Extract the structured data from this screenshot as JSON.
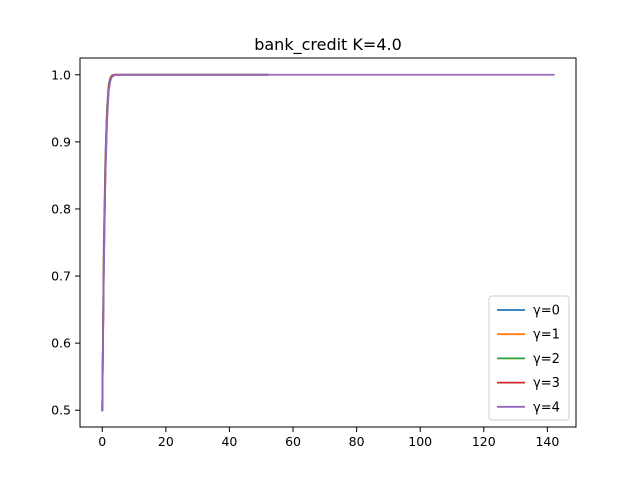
{
  "chart_data": {
    "type": "line",
    "title": "bank_credit K=4.0",
    "xlabel": "",
    "ylabel": "",
    "xlim": [
      -7,
      149
    ],
    "ylim": [
      0.475,
      1.025
    ],
    "x_ticks": [
      0,
      20,
      40,
      60,
      80,
      100,
      120,
      140
    ],
    "y_ticks": [
      0.5,
      0.6,
      0.7,
      0.8,
      0.9,
      1.0
    ],
    "y_tick_labels": [
      "0.5",
      "0.6",
      "0.7",
      "0.8",
      "0.9",
      "1.0"
    ],
    "grid": false,
    "legend_position": "lower-right",
    "series": [
      {
        "name": "γ=0",
        "color": "#1f77b4",
        "x": [
          0,
          0.5,
          1,
          1.5,
          2,
          2.5,
          3,
          4,
          6,
          10,
          20,
          30,
          40,
          52
        ],
        "y": [
          0.5,
          0.75,
          0.88,
          0.95,
          0.985,
          0.995,
          0.999,
          1.0,
          1.0,
          1.0,
          1.0,
          1.0,
          1.0,
          1.0
        ]
      },
      {
        "name": "γ=1",
        "color": "#ff7f0e",
        "x": [
          0,
          0.5,
          1,
          1.5,
          2,
          2.5,
          3,
          4,
          6,
          10,
          20,
          30,
          40,
          52
        ],
        "y": [
          0.5,
          0.74,
          0.87,
          0.945,
          0.982,
          0.994,
          0.999,
          1.0,
          1.0,
          1.0,
          1.0,
          1.0,
          1.0,
          1.0
        ]
      },
      {
        "name": "γ=2",
        "color": "#2ca02c",
        "x": [
          0,
          0.5,
          1,
          1.5,
          2,
          2.5,
          3,
          4,
          6,
          10,
          20,
          30,
          40,
          52
        ],
        "y": [
          0.5,
          0.73,
          0.865,
          0.94,
          0.98,
          0.993,
          0.998,
          1.0,
          1.0,
          1.0,
          1.0,
          1.0,
          1.0,
          1.0
        ]
      },
      {
        "name": "γ=3",
        "color": "#d62728",
        "x": [
          0,
          0.5,
          1,
          1.5,
          2,
          2.5,
          3,
          4,
          6,
          10,
          20,
          30,
          40,
          52
        ],
        "y": [
          0.5,
          0.72,
          0.86,
          0.935,
          0.978,
          0.992,
          0.998,
          1.0,
          1.0,
          1.0,
          1.0,
          1.0,
          1.0,
          1.0
        ]
      },
      {
        "name": "γ=4",
        "color": "#9467bd",
        "x": [
          0,
          0.5,
          1,
          1.5,
          2,
          2.5,
          3,
          4,
          6,
          10,
          20,
          40,
          60,
          80,
          100,
          120,
          142
        ],
        "y": [
          0.5,
          0.71,
          0.85,
          0.93,
          0.975,
          0.99,
          0.997,
          0.9995,
          1.0,
          1.0,
          1.0,
          1.0,
          1.0,
          1.0,
          1.0,
          1.0,
          1.0
        ]
      }
    ]
  }
}
